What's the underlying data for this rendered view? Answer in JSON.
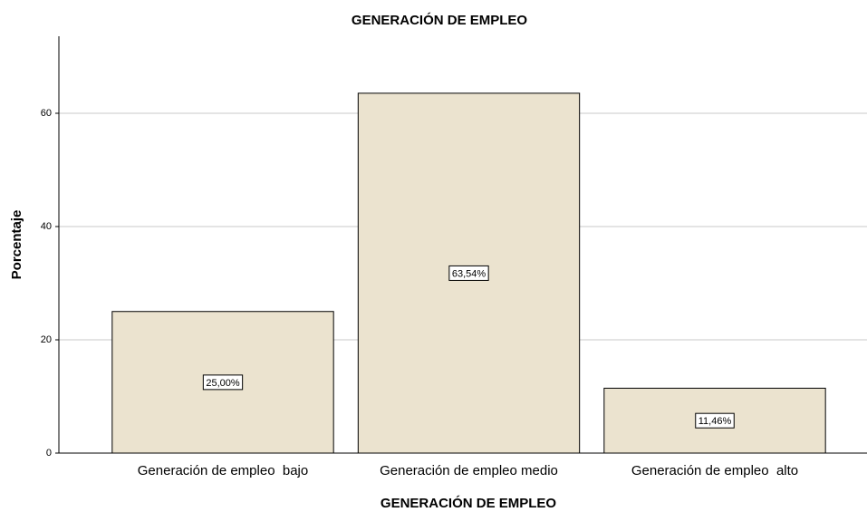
{
  "chart_data": {
    "type": "bar",
    "title": "GENERACIÓN DE EMPLEO",
    "x_label": "GENERACIÓN DE EMPLEO",
    "y_label": "Porcentaje",
    "categories": [
      "Generación de empleo  bajo",
      "Generación de empleo medio",
      "Generación de empleo  alto"
    ],
    "values": [
      25.0,
      63.54,
      11.46
    ],
    "value_labels": [
      "25,00%",
      "63,54%",
      "11,46%"
    ],
    "color": "#ebe3cf",
    "ylim": [
      0,
      73.6
    ],
    "yticks": [
      0,
      20,
      40,
      60
    ],
    "grid": true
  }
}
